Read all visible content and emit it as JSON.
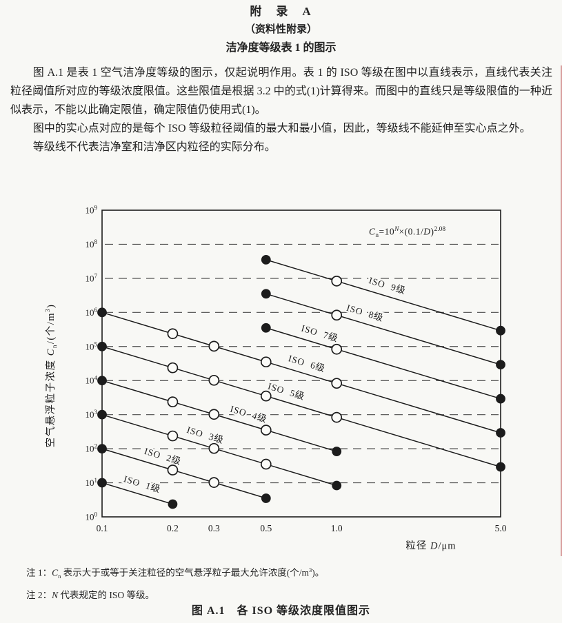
{
  "doc": {
    "title_line1": "附　录　A",
    "title_line2": "（资料性附录）",
    "title_line3": "洁净度等级表 1 的图示",
    "paragraphs": [
      "图 A.1 是表 1 空气洁净度等级的图示，仅起说明作用。表 1 的 ISO 等级在图中以直线表示，直线代表关注粒径阈值所对应的等级浓度限值。这些限值是根据 3.2 中的式(1)计算得来。而图中的直线只是等级限值的一种近似表示，不能以此确定限值，确定限值仍使用式(1)。",
      "图中的实心点对应的是每个 ISO 等级粒径阈值的最大和最小值，因此，等级线不能延伸至实心点之外。",
      "等级线不代表洁净室和洁净区内粒径的实际分布。"
    ],
    "note1_parts": {
      "label": "注 1：",
      "var": "C",
      "var_sub": "n",
      "text": " 表示大于或等于关注粒径的空气悬浮粒子最大允许浓度(个/m",
      "sup": "3",
      "tail": ")。"
    },
    "note2_parts": {
      "label": "注 2：",
      "var": "N",
      "text": " 代表规定的 ISO 等级。"
    },
    "caption": "图 A.1　各 ISO 等级浓度限值图示"
  },
  "chart_data": {
    "type": "line",
    "x_scale": "log",
    "y_scale": "log",
    "xlim": [
      0.1,
      5.0
    ],
    "ylim_exponents": [
      0,
      9
    ],
    "grid": "horizontal-dashed",
    "line_color": "#1c1c1c",
    "grid_color": "#4a4a4a",
    "formula_parts": {
      "var": "C",
      "var_sub": "n",
      "eq": "=10",
      "exp_n": "N",
      "times": "×(0.1/",
      "var_d": "D",
      "close": ")",
      "exp2": "2.08"
    },
    "xlabel_parts": {
      "prefix": "粒径 ",
      "var": "D",
      "unit": "/μm"
    },
    "ylabel_parts": {
      "prefix": "空气悬浮粒子浓度 ",
      "var": "C",
      "var_sub": "n",
      "unit": "/(个/m",
      "unit_sup": "3",
      "close": ")"
    },
    "x_ticks": [
      {
        "v": 0.1,
        "label": "0.1"
      },
      {
        "v": 0.2,
        "label": "0.2"
      },
      {
        "v": 0.3,
        "label": "0.3"
      },
      {
        "v": 0.5,
        "label": "0.5"
      },
      {
        "v": 1.0,
        "label": "1.0"
      },
      {
        "v": 5.0,
        "label": "5.0"
      }
    ],
    "y_ticks_exponents": [
      0,
      1,
      2,
      3,
      4,
      5,
      6,
      7,
      8,
      9
    ],
    "gridline_exponents": [
      1,
      2,
      3,
      4,
      5,
      6,
      7,
      8
    ],
    "series": [
      {
        "name": "ISO 1级",
        "iso_class": 1,
        "x": [
          0.1,
          0.2
        ],
        "y": [
          10,
          2.37
        ],
        "markers": [
          "filled",
          "filled"
        ],
        "label_at_x": 0.147
      },
      {
        "name": "ISO 2级",
        "iso_class": 2,
        "x": [
          0.1,
          0.2,
          0.3,
          0.5
        ],
        "y": [
          100,
          23.7,
          10.2,
          3.52
        ],
        "markers": [
          "filled",
          "open",
          "open",
          "filled"
        ],
        "label_at_x": 0.18
      },
      {
        "name": "ISO 3级",
        "iso_class": 3,
        "x": [
          0.1,
          0.2,
          0.3,
          0.5,
          1.0
        ],
        "y": [
          1000,
          237,
          102,
          35.2,
          8.32
        ],
        "markers": [
          "filled",
          "open",
          "open",
          "open",
          "filled"
        ],
        "label_at_x": 0.273
      },
      {
        "name": "ISO 4级",
        "iso_class": 4,
        "x": [
          0.1,
          0.2,
          0.3,
          0.5,
          1.0
        ],
        "y": [
          10000,
          2370,
          1020,
          352,
          83.2
        ],
        "markers": [
          "filled",
          "open",
          "open",
          "open",
          "filled"
        ],
        "label_at_x": 0.418
      },
      {
        "name": "ISO 5级",
        "iso_class": 5,
        "x": [
          0.1,
          0.2,
          0.3,
          0.5,
          1.0,
          5.0
        ],
        "y": [
          100000,
          23700,
          10200,
          3520,
          832,
          29.3
        ],
        "markers": [
          "filled",
          "open",
          "open",
          "open",
          "open",
          "filled"
        ],
        "label_at_x": 0.605
      },
      {
        "name": "ISO 6级",
        "iso_class": 6,
        "x": [
          0.1,
          0.2,
          0.3,
          0.5,
          1.0,
          5.0
        ],
        "y": [
          1000000,
          237000,
          102000,
          35200,
          8320,
          293
        ],
        "markers": [
          "filled",
          "open",
          "open",
          "open",
          "open",
          "filled"
        ],
        "label_at_x": 0.74
      },
      {
        "name": "ISO 7级",
        "iso_class": 7,
        "x": [
          0.5,
          1.0,
          5.0
        ],
        "y": [
          352000,
          83200,
          2930
        ],
        "markers": [
          "filled",
          "open",
          "filled"
        ],
        "label_at_x": 0.84
      },
      {
        "name": "ISO 8级",
        "iso_class": 8,
        "x": [
          0.5,
          1.0,
          5.0
        ],
        "y": [
          3520000,
          832000,
          29300
        ],
        "markers": [
          "filled",
          "open",
          "filled"
        ],
        "label_at_x": 1.31
      },
      {
        "name": "ISO 9级",
        "iso_class": 9,
        "x": [
          0.5,
          1.0,
          5.0
        ],
        "y": [
          35200000,
          8320000,
          293000
        ],
        "markers": [
          "filled",
          "open",
          "filled"
        ],
        "label_at_x": 1.63
      }
    ]
  }
}
